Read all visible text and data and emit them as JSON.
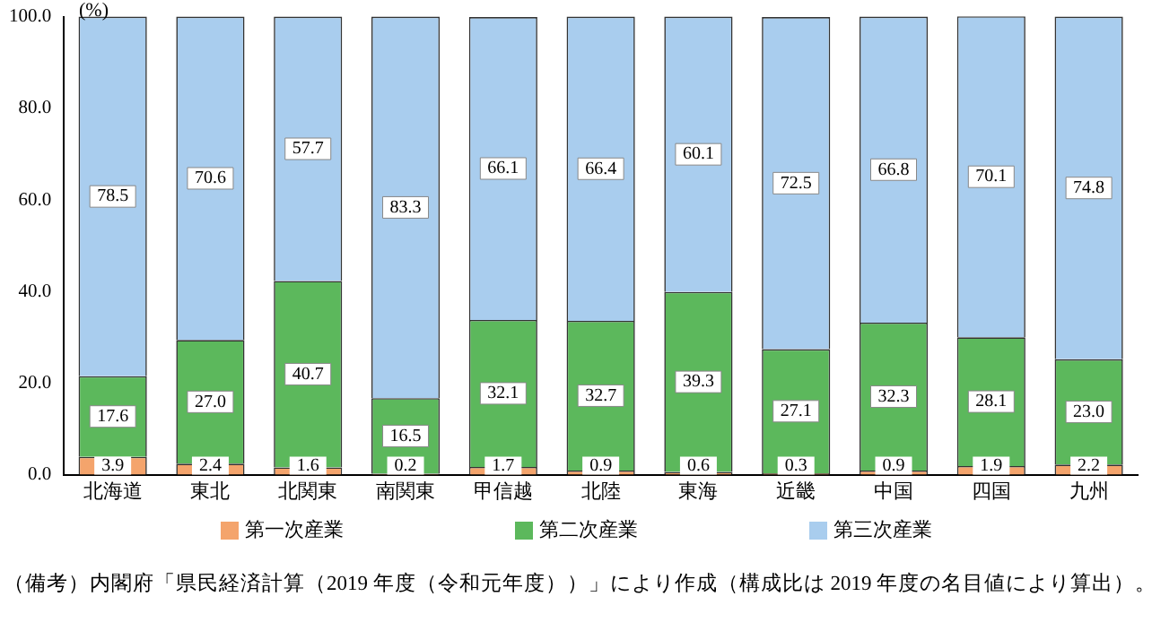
{
  "chart_data": {
    "type": "bar",
    "stacked": true,
    "ylabel": "(%)",
    "categories": [
      "北海道",
      "東北",
      "北関東",
      "南関東",
      "甲信越",
      "北陸",
      "東海",
      "近畿",
      "中国",
      "四国",
      "九州"
    ],
    "series": [
      {
        "name": "第一次産業",
        "color": "#f4a46c",
        "values": [
          3.9,
          2.4,
          1.6,
          0.2,
          1.7,
          0.9,
          0.6,
          0.3,
          0.9,
          1.9,
          2.2
        ],
        "value_labels": [
          "3.9",
          "2.4",
          "1.6",
          "0.2",
          "1.7",
          "0.9",
          "0.6",
          "0.3",
          "0.9",
          "1.9",
          "2.2"
        ]
      },
      {
        "name": "第二次産業",
        "color": "#5cb85c",
        "values": [
          17.6,
          27.0,
          40.7,
          16.5,
          32.1,
          32.7,
          39.3,
          27.1,
          32.3,
          28.1,
          23.0
        ],
        "value_labels": [
          "17.6",
          "27.0",
          "40.7",
          "16.5",
          "32.1",
          "32.7",
          "39.3",
          "27.1",
          "32.3",
          "28.1",
          "23.0"
        ]
      },
      {
        "name": "第三次産業",
        "color": "#a9cdee",
        "values": [
          78.5,
          70.6,
          57.7,
          83.3,
          66.1,
          66.4,
          60.1,
          72.5,
          66.8,
          70.1,
          74.8
        ],
        "value_labels": [
          "78.5",
          "70.6",
          "57.7",
          "83.3",
          "66.1",
          "66.4",
          "60.1",
          "72.5",
          "66.8",
          "70.1",
          "74.8"
        ]
      }
    ],
    "ylim": [
      0,
      100
    ],
    "yticks": [
      {
        "value": 0,
        "label": "0.0"
      },
      {
        "value": 20,
        "label": "20.0"
      },
      {
        "value": 40,
        "label": "40.0"
      },
      {
        "value": 60,
        "label": "60.0"
      },
      {
        "value": 80,
        "label": "80.0"
      },
      {
        "value": 100,
        "label": "100.0"
      }
    ],
    "grid": false,
    "legend": "bottom",
    "annotations": [
      "（備考）内閣府「県民経済計算（2019 年度（令和元年度））」により作成（構成比は 2019 年度の名目値により算出）。"
    ]
  }
}
